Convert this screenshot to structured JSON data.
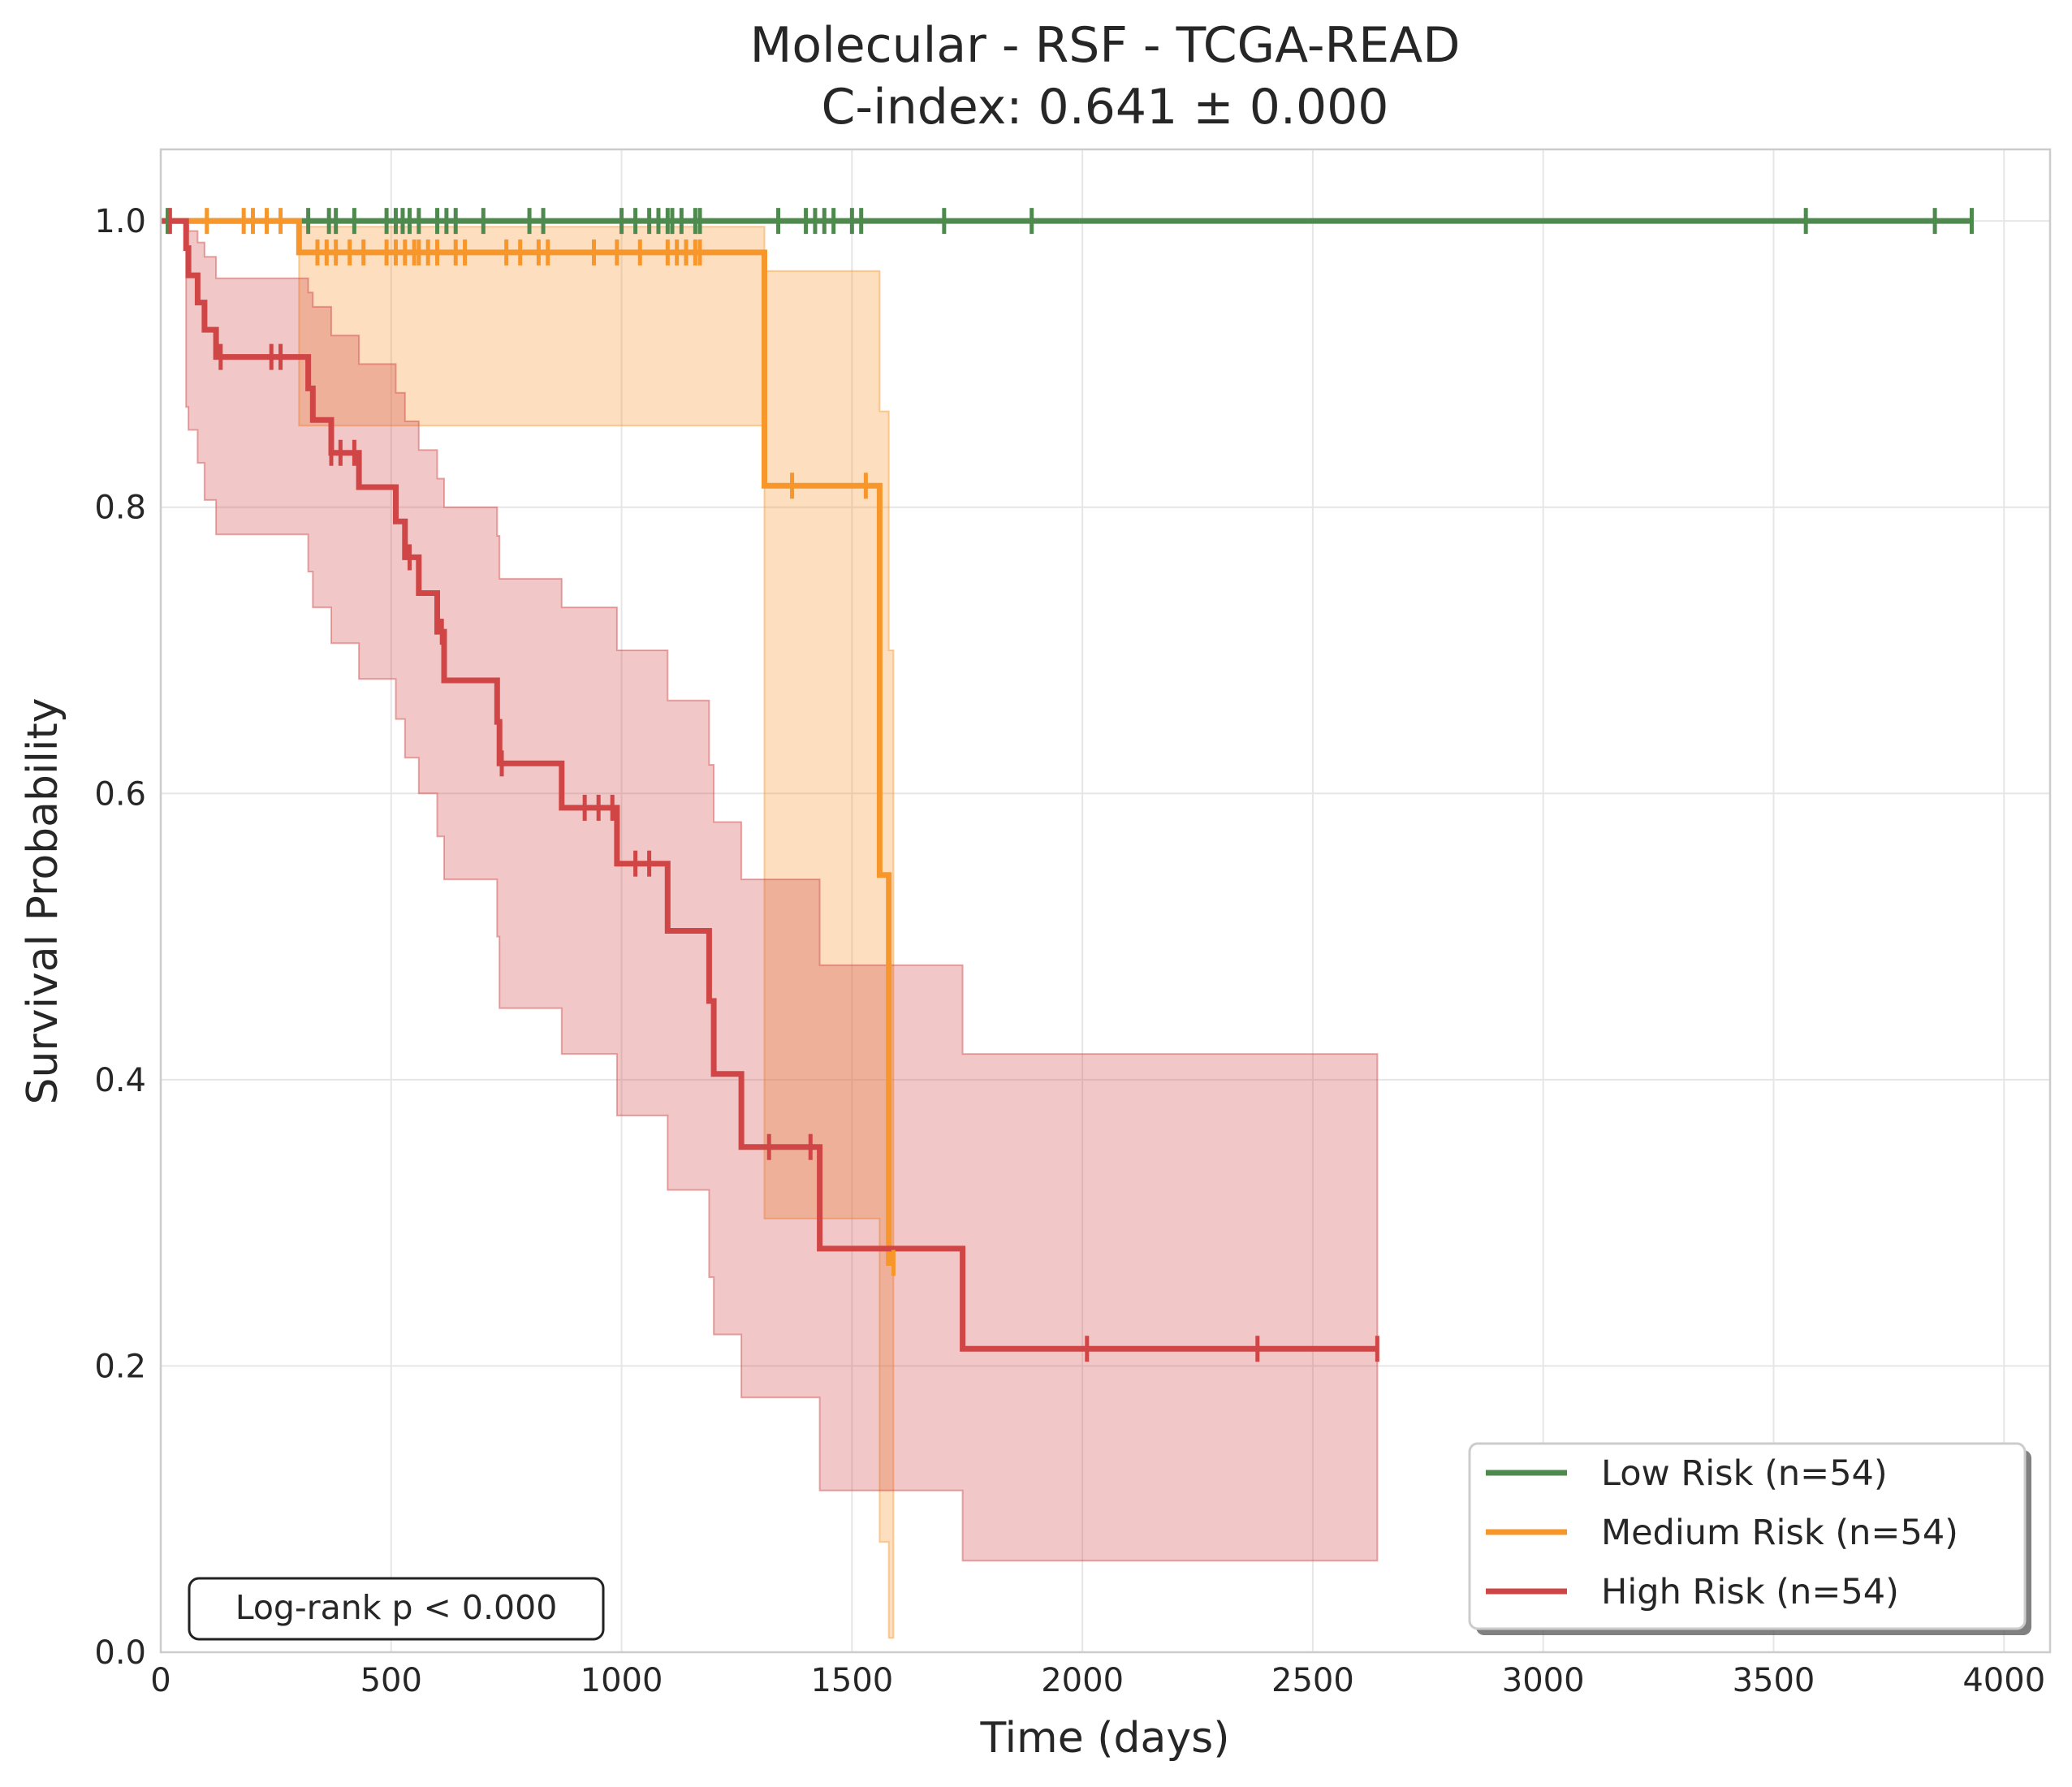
{
  "chart_data": {
    "type": "line",
    "title": "Molecular - RSF - TCGA-READ",
    "subtitle": "C-index: 0.641 ± 0.000",
    "xlabel": "Time (days)",
    "ylabel": "Survival Probability",
    "xlim": [
      0,
      4100
    ],
    "ylim": [
      0,
      1.05
    ],
    "xticks": [
      0,
      500,
      1000,
      1500,
      2000,
      2500,
      3000,
      3500,
      4000
    ],
    "xtick_labels": [
      "0",
      "500",
      "1000",
      "1500",
      "2000",
      "2500",
      "3000",
      "3500",
      "4000"
    ],
    "yticks": [
      0.0,
      0.2,
      0.4,
      0.6,
      0.8,
      1.0
    ],
    "ytick_labels": [
      "0.0",
      "0.2",
      "0.4",
      "0.6",
      "0.8",
      "1.0"
    ],
    "grid": true,
    "legend_position": "bottom-right",
    "annotation": "Log-rank p < 0.000",
    "series": [
      {
        "name": "Low Risk (n=54)",
        "color": "#4e8a4e",
        "steps": [
          [
            0,
            1.0
          ],
          [
            3930,
            1.0
          ]
        ],
        "ci": [],
        "censor": [
          15,
          320,
          365,
          380,
          420,
          490,
          510,
          525,
          540,
          560,
          600,
          620,
          640,
          700,
          800,
          830,
          1000,
          1030,
          1060,
          1080,
          1100,
          1110,
          1130,
          1160,
          1170,
          1340,
          1400,
          1420,
          1440,
          1460,
          1500,
          1520,
          1700,
          1890,
          3570,
          3850,
          3930
        ]
      },
      {
        "name": "Medium Risk (n=54)",
        "color": "#f7962a",
        "steps": [
          [
            0,
            1.0
          ],
          [
            300,
            1.0
          ],
          [
            300,
            0.978
          ],
          [
            1310,
            0.978
          ],
          [
            1310,
            0.815
          ],
          [
            1560,
            0.815
          ],
          [
            1560,
            0.543
          ],
          [
            1580,
            0.543
          ],
          [
            1580,
            0.272
          ],
          [
            1590,
            0.272
          ]
        ],
        "ci": [
          [
            0,
            1.0,
            1.0
          ],
          [
            300,
            0.857,
            0.996
          ],
          [
            1310,
            0.303,
            0.965
          ],
          [
            1560,
            0.077,
            0.867
          ],
          [
            1580,
            0.01,
            0.7
          ],
          [
            1590,
            0.01,
            0.7
          ]
        ],
        "censor": [
          100,
          180,
          200,
          230,
          260,
          340,
          360,
          380,
          410,
          440,
          490,
          510,
          530,
          550,
          560,
          580,
          600,
          640,
          660,
          750,
          780,
          820,
          840,
          940,
          990,
          1040,
          1100,
          1120,
          1140,
          1160,
          1170,
          1370,
          1530,
          1590
        ]
      },
      {
        "name": "High Risk (n=54)",
        "color": "#d04545",
        "steps": [
          [
            0,
            1.0
          ],
          [
            55,
            1.0
          ],
          [
            55,
            0.981
          ],
          [
            60,
            0.981
          ],
          [
            60,
            0.962
          ],
          [
            80,
            0.962
          ],
          [
            80,
            0.943
          ],
          [
            95,
            0.943
          ],
          [
            95,
            0.924
          ],
          [
            120,
            0.924
          ],
          [
            120,
            0.905
          ],
          [
            320,
            0.905
          ],
          [
            320,
            0.883
          ],
          [
            330,
            0.883
          ],
          [
            330,
            0.861
          ],
          [
            370,
            0.861
          ],
          [
            370,
            0.838
          ],
          [
            430,
            0.838
          ],
          [
            430,
            0.814
          ],
          [
            510,
            0.814
          ],
          [
            510,
            0.79
          ],
          [
            530,
            0.79
          ],
          [
            530,
            0.765
          ],
          [
            560,
            0.765
          ],
          [
            560,
            0.74
          ],
          [
            600,
            0.74
          ],
          [
            600,
            0.713
          ],
          [
            615,
            0.713
          ],
          [
            615,
            0.679
          ],
          [
            730,
            0.679
          ],
          [
            730,
            0.65
          ],
          [
            735,
            0.65
          ],
          [
            735,
            0.621
          ],
          [
            870,
            0.621
          ],
          [
            870,
            0.59
          ],
          [
            990,
            0.59
          ],
          [
            990,
            0.551
          ],
          [
            1100,
            0.551
          ],
          [
            1100,
            0.504
          ],
          [
            1190,
            0.504
          ],
          [
            1190,
            0.455
          ],
          [
            1200,
            0.455
          ],
          [
            1200,
            0.404
          ],
          [
            1260,
            0.404
          ],
          [
            1260,
            0.353
          ],
          [
            1430,
            0.353
          ],
          [
            1430,
            0.282
          ],
          [
            1740,
            0.282
          ],
          [
            1740,
            0.212
          ],
          [
            2640,
            0.212
          ]
        ],
        "ci": [
          [
            0,
            1.0,
            1.0
          ],
          [
            55,
            0.87,
            0.997
          ],
          [
            60,
            0.854,
            0.993
          ],
          [
            80,
            0.831,
            0.985
          ],
          [
            95,
            0.805,
            0.975
          ],
          [
            120,
            0.781,
            0.96
          ],
          [
            320,
            0.755,
            0.95
          ],
          [
            330,
            0.73,
            0.94
          ],
          [
            370,
            0.705,
            0.92
          ],
          [
            430,
            0.68,
            0.9
          ],
          [
            510,
            0.652,
            0.88
          ],
          [
            530,
            0.625,
            0.86
          ],
          [
            560,
            0.6,
            0.84
          ],
          [
            600,
            0.57,
            0.82
          ],
          [
            615,
            0.54,
            0.8
          ],
          [
            730,
            0.5,
            0.78
          ],
          [
            735,
            0.45,
            0.75
          ],
          [
            870,
            0.418,
            0.73
          ],
          [
            990,
            0.375,
            0.7
          ],
          [
            1100,
            0.323,
            0.665
          ],
          [
            1190,
            0.262,
            0.62
          ],
          [
            1200,
            0.222,
            0.58
          ],
          [
            1260,
            0.178,
            0.54
          ],
          [
            1430,
            0.113,
            0.48
          ],
          [
            1740,
            0.064,
            0.418
          ],
          [
            2640,
            0.064,
            0.418
          ]
        ],
        "censor": [
          20,
          130,
          240,
          260,
          370,
          390,
          420,
          540,
          610,
          740,
          920,
          950,
          980,
          1030,
          1060,
          1320,
          1410,
          2010,
          2380,
          2640
        ]
      }
    ]
  }
}
